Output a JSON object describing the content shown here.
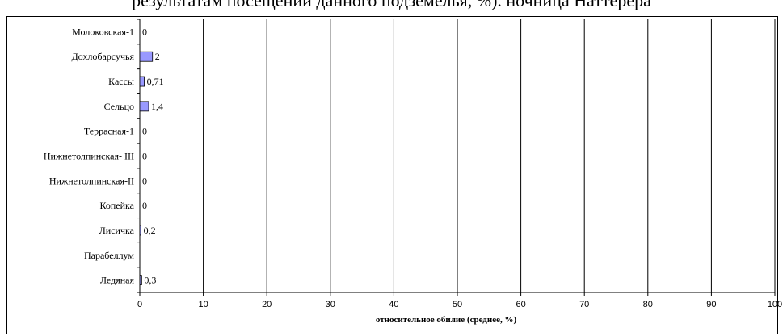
{
  "heading": "результатам посещений данного подземелья, %). ночница Наттерера",
  "chart_data": {
    "type": "bar",
    "orientation": "horizontal",
    "categories": [
      "Молоковская-1",
      "Дохлобарсучья",
      "Кассы",
      "Сельцо",
      "Террасная-1",
      "Нижнетолпинская- III",
      "Нижнетолпинская-II",
      "Копейка",
      "Лисичка",
      "Парабеллум",
      "Ледяная"
    ],
    "values": [
      0,
      2,
      0.71,
      1.4,
      0,
      0,
      0,
      0,
      0.2,
      null,
      0.3
    ],
    "value_labels": [
      "0",
      "2",
      "0,71",
      "1,4",
      "0",
      "0",
      "0",
      "0",
      "0,2",
      "",
      "0,3"
    ],
    "xlabel": "относительное обилие  (среднее, %)",
    "xlim": [
      0,
      100
    ],
    "xticks": [
      "0",
      "10",
      "20",
      "30",
      "40",
      "50",
      "60",
      "70",
      "80",
      "90",
      "100"
    ],
    "grid": "vertical",
    "bar_color": "#9999ff"
  }
}
